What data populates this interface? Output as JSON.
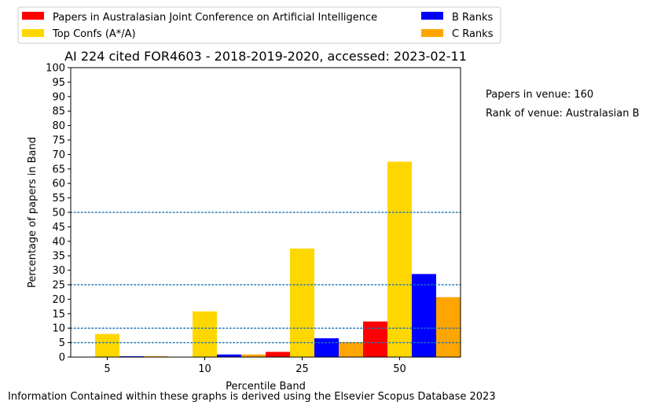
{
  "chart_data": {
    "type": "bar",
    "title": "AI 224 cited FOR4603 - 2018-2019-2020, accessed: 2023-02-11",
    "xlabel": "Percentile Band",
    "ylabel": "Percentage of papers in Band",
    "categories": [
      "5",
      "10",
      "25",
      "50"
    ],
    "ylim": [
      0,
      100
    ],
    "yticks": [
      0,
      5,
      10,
      15,
      20,
      25,
      30,
      35,
      40,
      45,
      50,
      55,
      60,
      65,
      70,
      75,
      80,
      85,
      90,
      95,
      100
    ],
    "reference_lines": [
      5,
      10,
      25,
      50
    ],
    "legend_position": "top",
    "series": [
      {
        "name": "Papers in Australasian Joint Conference on Artificial Intelligence",
        "color": "#ff0000",
        "values": [
          0,
          0,
          1.8,
          12.3
        ]
      },
      {
        "name": "Top Confs (A*/A)",
        "color": "#ffd700",
        "values": [
          8.0,
          15.8,
          37.5,
          67.5
        ]
      },
      {
        "name": "B Ranks",
        "color": "#0000ff",
        "values": [
          0.3,
          0.9,
          6.5,
          28.7
        ]
      },
      {
        "name": "C Ranks",
        "color": "#ffa500",
        "values": [
          0.3,
          0.9,
          5.2,
          20.7
        ]
      }
    ]
  },
  "annotations": {
    "papers_in_venue": "Papers in venue: 160",
    "rank_of_venue": "Rank of venue: Australasian B"
  },
  "footer": "Information Contained within these graphs is derived using the Elsevier Scopus Database 2023",
  "colors": {
    "reference_line": "#1f77b4"
  }
}
